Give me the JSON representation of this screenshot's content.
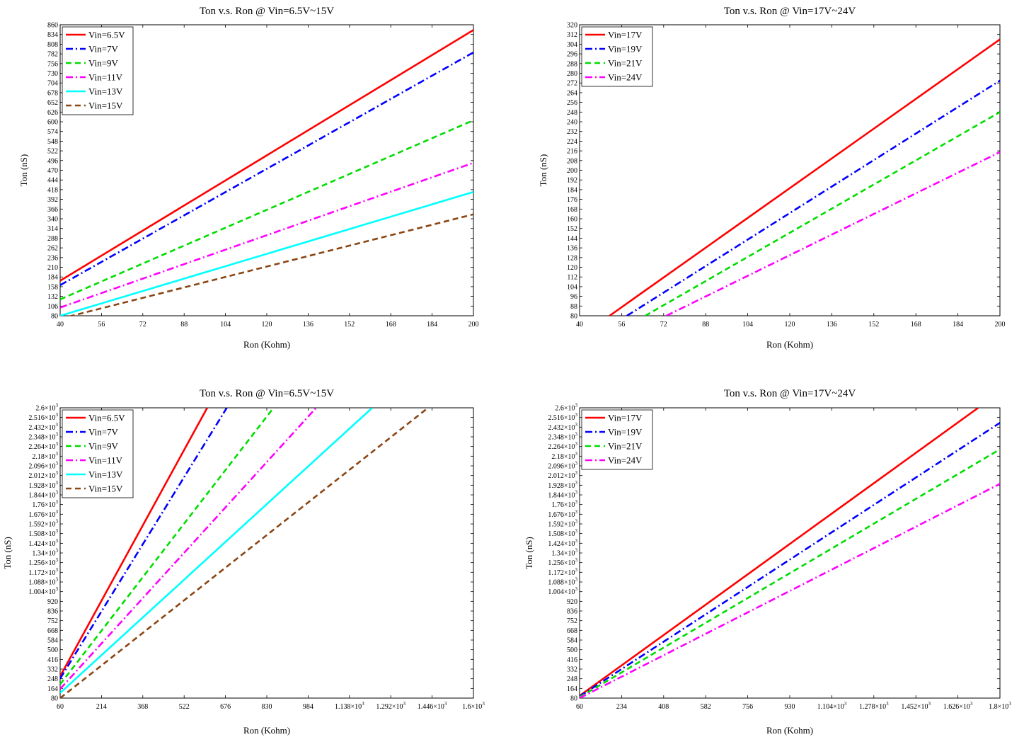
{
  "chart_data": [
    {
      "type": "line",
      "title": "Ton v.s. Ron @ Vin=6.5V~15V",
      "xlabel": "Ron (Kohm)",
      "ylabel": "Ton (nS)",
      "xlim": [
        40,
        200
      ],
      "ylim": [
        80,
        860
      ],
      "xticks": [
        "40",
        "56",
        "72",
        "88",
        "104",
        "120",
        "136",
        "152",
        "168",
        "184",
        "200"
      ],
      "yticks": [
        "80",
        "106",
        "132",
        "158",
        "184",
        "210",
        "236",
        "262",
        "288",
        "314",
        "340",
        "366",
        "392",
        "418",
        "444",
        "470",
        "496",
        "522",
        "548",
        "574",
        "600",
        "626",
        "652",
        "678",
        "704",
        "730",
        "756",
        "782",
        "808",
        "834",
        "860"
      ],
      "legend": "top-left",
      "grid": false,
      "series": [
        {
          "name": "Vin=6.5V",
          "color": "#ff0000",
          "dash": "solid",
          "x": [
            40,
            200
          ],
          "y": [
            174,
            846
          ]
        },
        {
          "name": "Vin=7V",
          "color": "#0000ff",
          "dash": "dashdot",
          "x": [
            40,
            200
          ],
          "y": [
            162,
            786
          ]
        },
        {
          "name": "Vin=9V",
          "color": "#00dd00",
          "dash": "dash",
          "x": [
            40,
            200
          ],
          "y": [
            124,
            604
          ]
        },
        {
          "name": "Vin=11V",
          "color": "#ff00ff",
          "dash": "dashdot",
          "x": [
            40,
            200
          ],
          "y": [
            102,
            490
          ]
        },
        {
          "name": "Vin=13V",
          "color": "#00ffff",
          "dash": "solid",
          "x": [
            40,
            200
          ],
          "y": [
            80,
            412
          ]
        },
        {
          "name": "Vin=15V",
          "color": "#8b4513",
          "dash": "dash",
          "x": [
            40,
            200
          ],
          "y": [
            72,
            352
          ]
        }
      ]
    },
    {
      "type": "line",
      "title": "Ton v.s. Ron @ Vin=17V~24V",
      "xlabel": "Ron (Kohm)",
      "ylabel": "Ton (nS)",
      "xlim": [
        40,
        200
      ],
      "ylim": [
        80,
        320
      ],
      "xticks": [
        "40",
        "56",
        "72",
        "88",
        "104",
        "120",
        "136",
        "152",
        "168",
        "184",
        "200"
      ],
      "yticks": [
        "80",
        "88",
        "96",
        "104",
        "112",
        "120",
        "128",
        "136",
        "144",
        "152",
        "160",
        "168",
        "176",
        "184",
        "192",
        "200",
        "208",
        "216",
        "224",
        "232",
        "240",
        "248",
        "256",
        "264",
        "272",
        "280",
        "288",
        "296",
        "304",
        "312",
        "320"
      ],
      "legend": "top-left",
      "grid": false,
      "series": [
        {
          "name": "Vin=17V",
          "color": "#ff0000",
          "dash": "solid",
          "x": [
            51.4,
            200
          ],
          "y": [
            80,
            308
          ]
        },
        {
          "name": "Vin=19V",
          "color": "#0000ff",
          "dash": "dashdot",
          "x": [
            58,
            200
          ],
          "y": [
            80,
            274
          ]
        },
        {
          "name": "Vin=21V",
          "color": "#00dd00",
          "dash": "dash",
          "x": [
            65,
            200
          ],
          "y": [
            80,
            248
          ]
        },
        {
          "name": "Vin=24V",
          "color": "#ff00ff",
          "dash": "dashdot",
          "x": [
            73,
            200
          ],
          "y": [
            80,
            215
          ]
        }
      ]
    },
    {
      "type": "line",
      "title": "Ton v.s. Ron @ Vin=6.5V~15V",
      "xlabel": "Ron (Kohm)",
      "ylabel": "Ton (nS)",
      "xlim": [
        60,
        1600
      ],
      "ylim": [
        80,
        2600
      ],
      "xticks": [
        "60",
        "214",
        "368",
        "522",
        "676",
        "830",
        "984",
        "1.138×10³",
        "1.292×10³",
        "1.446×10³",
        "1.6×10³"
      ],
      "yticks": [
        "80",
        "164",
        "248",
        "332",
        "416",
        "500",
        "584",
        "668",
        "752",
        "836",
        "920",
        "1.004×10³",
        "1.088×10³",
        "1.172×10³",
        "1.256×10³",
        "1.34×10³",
        "1.424×10³",
        "1.508×10³",
        "1.592×10³",
        "1.676×10³",
        "1.76×10³",
        "1.844×10³",
        "1.928×10³",
        "2.012×10³",
        "2.096×10³",
        "2.18×10³",
        "2.264×10³",
        "2.348×10³",
        "2.432×10³",
        "2.516×10³",
        "2.6×10³"
      ],
      "legend": "top-left",
      "grid": false,
      "series": [
        {
          "name": "Vin=6.5V",
          "color": "#ff0000",
          "dash": "solid",
          "x": [
            60,
            608
          ],
          "y": [
            270,
            2600
          ]
        },
        {
          "name": "Vin=7V",
          "color": "#0000ff",
          "dash": "dashdot",
          "x": [
            60,
            681
          ],
          "y": [
            250,
            2600
          ]
        },
        {
          "name": "Vin=9V",
          "color": "#00dd00",
          "dash": "dash",
          "x": [
            60,
            855
          ],
          "y": [
            200,
            2600
          ]
        },
        {
          "name": "Vin=11V",
          "color": "#ff00ff",
          "dash": "dashdot",
          "x": [
            60,
            1014
          ],
          "y": [
            160,
            2600
          ]
        },
        {
          "name": "Vin=13V",
          "color": "#00ffff",
          "dash": "solid",
          "x": [
            60,
            1223
          ],
          "y": [
            125,
            2600
          ]
        },
        {
          "name": "Vin=15V",
          "color": "#8b4513",
          "dash": "dash",
          "x": [
            60,
            1431
          ],
          "y": [
            80,
            2600
          ]
        }
      ]
    },
    {
      "type": "line",
      "title": "Ton v.s. Ron @ Vin=17V~24V",
      "xlabel": "Ron (Kohm)",
      "ylabel": "Ton (nS)",
      "xlim": [
        60,
        1800
      ],
      "ylim": [
        80,
        2600
      ],
      "xticks": [
        "60",
        "234",
        "408",
        "582",
        "756",
        "930",
        "1.104×10³",
        "1.278×10³",
        "1.452×10³",
        "1.626×10³",
        "1.8×10³"
      ],
      "yticks": [
        "80",
        "164",
        "248",
        "332",
        "416",
        "500",
        "584",
        "668",
        "752",
        "836",
        "920",
        "1.004×10³",
        "1.088×10³",
        "1.172×10³",
        "1.256×10³",
        "1.34×10³",
        "1.424×10³",
        "1.508×10³",
        "1.592×10³",
        "1.676×10³",
        "1.76×10³",
        "1.844×10³",
        "1.928×10³",
        "2.012×10³",
        "2.096×10³",
        "2.18×10³",
        "2.264×10³",
        "2.348×10³",
        "2.432×10³",
        "2.516×10³",
        "2.6×10³"
      ],
      "legend": "top-left",
      "grid": false,
      "series": [
        {
          "name": "Vin=17V",
          "color": "#ff0000",
          "dash": "solid",
          "x": [
            60,
            1710
          ],
          "y": [
            100,
            2600
          ]
        },
        {
          "name": "Vin=19V",
          "color": "#0000ff",
          "dash": "dashdot",
          "x": [
            60,
            1800
          ],
          "y": [
            95,
            2470
          ]
        },
        {
          "name": "Vin=21V",
          "color": "#00dd00",
          "dash": "dash",
          "x": [
            60,
            1800
          ],
          "y": [
            88,
            2240
          ]
        },
        {
          "name": "Vin=24V",
          "color": "#ff00ff",
          "dash": "dashdot",
          "x": [
            60,
            1800
          ],
          "y": [
            80,
            1940
          ]
        }
      ]
    }
  ]
}
